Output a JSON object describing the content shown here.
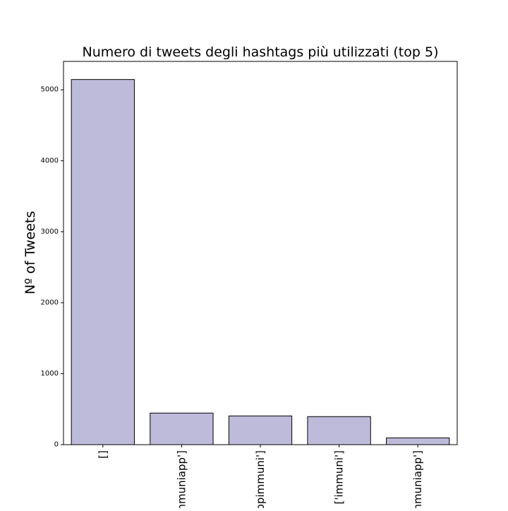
{
  "chart_data": {
    "type": "bar",
    "title": "Numero di tweets degli hashtags più utilizzati (top 5)",
    "xlabel": "",
    "ylabel": "Nº of Tweets",
    "categories": [
      "[]",
      "['immuniapp']",
      "['appimmuni']",
      "['immuni']",
      "['#immuniapp']"
    ],
    "values": [
      5145,
      445,
      405,
      395,
      95
    ],
    "ylim": [
      0,
      5400
    ],
    "yticks": [
      0,
      1000,
      2000,
      3000,
      4000,
      5000
    ],
    "grid": false,
    "bar_color": "#bebada",
    "edge_color": "#000000"
  }
}
